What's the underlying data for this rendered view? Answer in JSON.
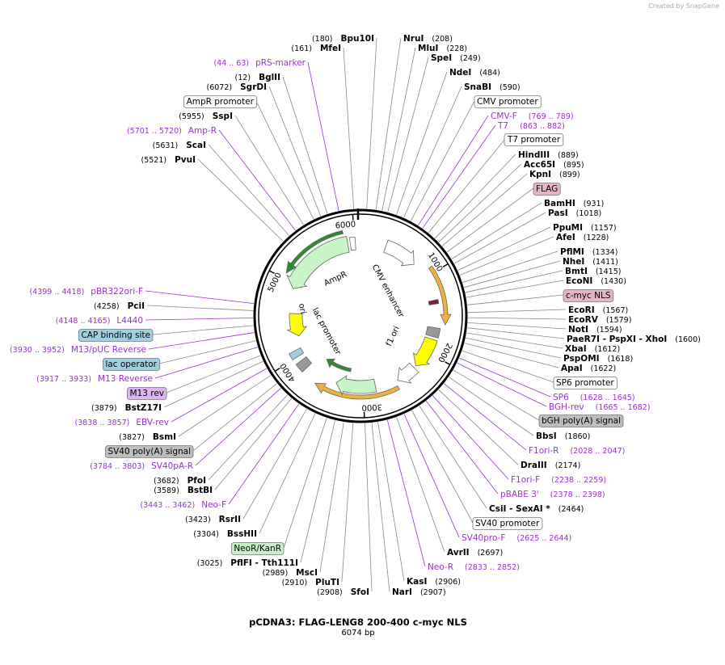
{
  "header": {
    "brand": "Created by SnapGene"
  },
  "title": "pCDNA3: FLAG-LENG8 200-400 c-myc NLS",
  "length": {
    "value": 6074,
    "label": "6074 bp"
  },
  "ring_ticks": [
    1000,
    2000,
    3000,
    4000,
    5000,
    6000
  ],
  "inner_features": [
    "CMV enhancer",
    "f1 ori",
    "lac promoter",
    "ori",
    "AmpR"
  ],
  "right_labels": [
    {
      "name": "NruI",
      "location": "(208)",
      "color": "#000000"
    },
    {
      "name": "MluI",
      "location": "(228)",
      "color": "#000000"
    },
    {
      "name": "SpeI",
      "location": "(249)",
      "color": "#000000"
    },
    {
      "name": "NdeI",
      "location": "(484)",
      "color": "#000000"
    },
    {
      "name": "SnaBI",
      "location": "(590)",
      "color": "#000000"
    },
    {
      "name": "CMV promoter",
      "fill": "#ffffff"
    },
    {
      "name": "CMV-F",
      "location": "(769 .. 789)",
      "color": "#9b30d0"
    },
    {
      "name": "T7",
      "location": "(863 .. 882)",
      "color": "#9b30d0"
    },
    {
      "name": "T7 promoter",
      "fill": "#ffffff"
    },
    {
      "name": "HindIII",
      "location": "(889)",
      "color": "#000000"
    },
    {
      "name": "Acc65I",
      "location": "(895)",
      "color": "#000000"
    },
    {
      "name": "KpnI",
      "location": "(899)",
      "color": "#000000"
    },
    {
      "name": "FLAG",
      "fill": "#e6b3c8"
    },
    {
      "name": "BamHI",
      "location": "(931)",
      "color": "#000000"
    },
    {
      "name": "PasI",
      "location": "(1018)",
      "color": "#000000"
    },
    {
      "name": "PpuMI",
      "location": "(1157)",
      "color": "#000000"
    },
    {
      "name": "AfeI",
      "location": "(1228)",
      "color": "#000000"
    },
    {
      "name": "PflMI",
      "location": "(1334)",
      "color": "#000000"
    },
    {
      "name": "NheI",
      "location": "(1411)",
      "color": "#000000"
    },
    {
      "name": "BmtI",
      "location": "(1415)",
      "color": "#000000"
    },
    {
      "name": "EcoNI",
      "location": "(1430)",
      "color": "#000000"
    },
    {
      "name": "c-myc NLS",
      "fill": "#e6b3c8"
    },
    {
      "name": "EcoRI",
      "location": "(1567)",
      "color": "#000000"
    },
    {
      "name": "EcoRV",
      "location": "(1579)",
      "color": "#000000"
    },
    {
      "name": "NotI",
      "location": "(1594)",
      "color": "#000000"
    },
    {
      "name": "PaeR7I - PspXI - XhoI",
      "location": "(1600)",
      "color": "#000000"
    },
    {
      "name": "XbaI",
      "location": "(1612)",
      "color": "#000000"
    },
    {
      "name": "PspOMI",
      "location": "(1618)",
      "color": "#000000"
    },
    {
      "name": "ApaI",
      "location": "(1622)",
      "color": "#000000"
    },
    {
      "name": "SP6 promoter",
      "fill": "#ffffff"
    },
    {
      "name": "SP6",
      "location": "(1628 .. 1645)",
      "color": "#9b30d0"
    },
    {
      "name": "BGH-rev",
      "location": "(1665 .. 1682)",
      "color": "#9b30d0"
    },
    {
      "name": "bGH poly(A) signal",
      "fill": "#bdbdbd"
    },
    {
      "name": "BbsI",
      "location": "(1860)",
      "color": "#000000"
    },
    {
      "name": "F1ori-R",
      "location": "(2028 .. 2047)",
      "color": "#9b30d0"
    },
    {
      "name": "DraIII",
      "location": "(2174)",
      "color": "#000000"
    },
    {
      "name": "F1ori-F",
      "location": "(2238 .. 2259)",
      "color": "#9b30d0"
    },
    {
      "name": "pBABE 3'",
      "location": "(2378 .. 2398)",
      "color": "#9b30d0"
    },
    {
      "name": "CsiI - SexAI *",
      "location": "(2464)",
      "color": "#000000"
    },
    {
      "name": "SV40 promoter",
      "fill": "#ffffff"
    },
    {
      "name": "SV40pro-F",
      "location": "(2625 .. 2644)",
      "color": "#9b30d0"
    },
    {
      "name": "AvrII",
      "location": "(2697)",
      "color": "#000000"
    },
    {
      "name": "Neo-R",
      "location": "(2833 .. 2852)",
      "color": "#9b30d0"
    },
    {
      "name": "KasI",
      "location": "(2906)",
      "color": "#000000"
    },
    {
      "name": "NarI",
      "location": "(2907)",
      "color": "#000000"
    }
  ],
  "left_labels": [
    {
      "name": "Bpu10I",
      "location": "(180)",
      "color": "#000000"
    },
    {
      "name": "MfeI",
      "location": "(161)",
      "color": "#000000"
    },
    {
      "name": "pRS-marker",
      "location": "(44 .. 63)",
      "color": "#9b30d0"
    },
    {
      "name": "BglII",
      "location": "(12)",
      "color": "#000000"
    },
    {
      "name": "SgrDI",
      "location": "(6072)",
      "color": "#000000"
    },
    {
      "name": "AmpR promoter",
      "fill": "#ffffff"
    },
    {
      "name": "SspI",
      "location": "(5955)",
      "color": "#000000"
    },
    {
      "name": "Amp-R",
      "location": "(5701 .. 5720)",
      "color": "#9b30d0"
    },
    {
      "name": "ScaI",
      "location": "(5631)",
      "color": "#000000"
    },
    {
      "name": "PvuI",
      "location": "(5521)",
      "color": "#000000"
    },
    {
      "name": "pBR322ori-F",
      "location": "(4399 .. 4418)",
      "color": "#9b30d0"
    },
    {
      "name": "PciI",
      "location": "(4258)",
      "color": "#000000"
    },
    {
      "name": "L4440",
      "location": "(4148 .. 4165)",
      "color": "#9b30d0"
    },
    {
      "name": "CAP binding site",
      "fill": "#9fcfe0"
    },
    {
      "name": "M13/pUC Reverse",
      "location": "(3930 .. 3952)",
      "color": "#9b30d0"
    },
    {
      "name": "lac operator",
      "fill": "#9fcfe0"
    },
    {
      "name": "M13 Reverse",
      "location": "(3917 .. 3933)",
      "color": "#9b30d0"
    },
    {
      "name": "M13 rev",
      "fill": "#dcb4f0"
    },
    {
      "name": "BstZ17I",
      "location": "(3879)",
      "color": "#000000"
    },
    {
      "name": "EBV-rev",
      "location": "(3838 .. 3857)",
      "color": "#9b30d0"
    },
    {
      "name": "BsmI",
      "location": "(3827)",
      "color": "#000000"
    },
    {
      "name": "SV40 poly(A) signal",
      "fill": "#bdbdbd"
    },
    {
      "name": "SV40pA-R",
      "location": "(3784 .. 3803)",
      "color": "#9b30d0"
    },
    {
      "name": "PfoI",
      "location": "(3682)",
      "color": "#000000"
    },
    {
      "name": "BstBI",
      "location": "(3589)",
      "color": "#000000"
    },
    {
      "name": "Neo-F",
      "location": "(3443 .. 3462)",
      "color": "#9b30d0"
    },
    {
      "name": "RsrII",
      "location": "(3423)",
      "color": "#000000"
    },
    {
      "name": "BssHII",
      "location": "(3304)",
      "color": "#000000"
    },
    {
      "name": "NeoR/KanR",
      "fill": "#c8f0c8"
    },
    {
      "name": "PflFI - Tth111I",
      "location": "(3025)",
      "color": "#000000"
    },
    {
      "name": "MscI",
      "location": "(2989)",
      "color": "#000000"
    },
    {
      "name": "PluTI",
      "location": "(2910)",
      "color": "#000000"
    },
    {
      "name": "SfoI",
      "location": "(2908)",
      "color": "#000000"
    }
  ]
}
